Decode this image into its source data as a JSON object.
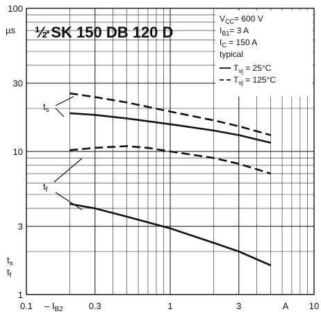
{
  "chart_data": {
    "type": "line",
    "title": "½·SK 150 DB 120 D",
    "title_prefix": "½",
    "title_text": "·SK 150 DB 120 D",
    "x_scale": "log",
    "y_scale": "log",
    "xlim": [
      0.1,
      10
    ],
    "ylim": [
      1,
      100
    ],
    "x_ticks": [
      {
        "value": 0.1,
        "label": "0.1"
      },
      {
        "value": 0.3,
        "label": "0.3"
      },
      {
        "value": 1,
        "label": "1"
      },
      {
        "value": 3,
        "label": "3"
      },
      {
        "value": 10,
        "label": "10"
      }
    ],
    "x_extra_labels": {
      "ib2": "– I",
      "ib2_sub": "B2",
      "unit": "A"
    },
    "y_ticks": [
      {
        "value": 1,
        "label": "1"
      },
      {
        "value": 3,
        "label": "3"
      },
      {
        "value": 10,
        "label": "10"
      },
      {
        "value": 30,
        "label": "30"
      },
      {
        "value": 100,
        "label": "100"
      }
    ],
    "y_unit": "µs",
    "y_axis_labels": [
      "t",
      "t"
    ],
    "y_axis_label_subs": [
      "s",
      "f"
    ],
    "conditions": [
      {
        "main": "V",
        "sub": "CC",
        "rest": "= 600 V"
      },
      {
        "main": "I",
        "sub": "B1",
        "rest": "= 3 A"
      },
      {
        "main": "I",
        "sub": "C",
        "rest": " = 150 A"
      },
      {
        "main": "typical",
        "sub": "",
        "rest": ""
      }
    ],
    "legend": [
      {
        "style": "solid",
        "main": "T",
        "sub": "vj",
        "rest": " = 25°C"
      },
      {
        "style": "dashed",
        "main": "T",
        "sub": "vj",
        "rest": " = 125°C"
      }
    ],
    "curve_labels": [
      {
        "main": "t",
        "sub": "s"
      },
      {
        "main": "t",
        "sub": "f"
      }
    ],
    "series": [
      {
        "curve": "ts",
        "style": "solid",
        "x": [
          0.2,
          0.3,
          0.5,
          1,
          2,
          3,
          5
        ],
        "y": [
          18.5,
          18.0,
          17.0,
          15.5,
          14.0,
          13.0,
          11.5
        ]
      },
      {
        "curve": "ts",
        "style": "dashed",
        "x": [
          0.2,
          0.3,
          0.5,
          1,
          2,
          3,
          5
        ],
        "y": [
          25.5,
          24.0,
          22.0,
          19.0,
          16.5,
          15.0,
          13.0
        ]
      },
      {
        "curve": "tf",
        "style": "solid",
        "x": [
          0.2,
          0.3,
          0.5,
          1,
          2,
          3,
          5
        ],
        "y": [
          4.3,
          4.0,
          3.5,
          2.9,
          2.3,
          2.0,
          1.6
        ]
      },
      {
        "curve": "tf",
        "style": "dashed",
        "x": [
          0.2,
          0.3,
          0.5,
          0.7,
          1,
          2,
          3,
          5
        ],
        "y": [
          10.2,
          10.6,
          10.9,
          10.6,
          10.0,
          9.0,
          8.2,
          7.0
        ]
      }
    ]
  }
}
